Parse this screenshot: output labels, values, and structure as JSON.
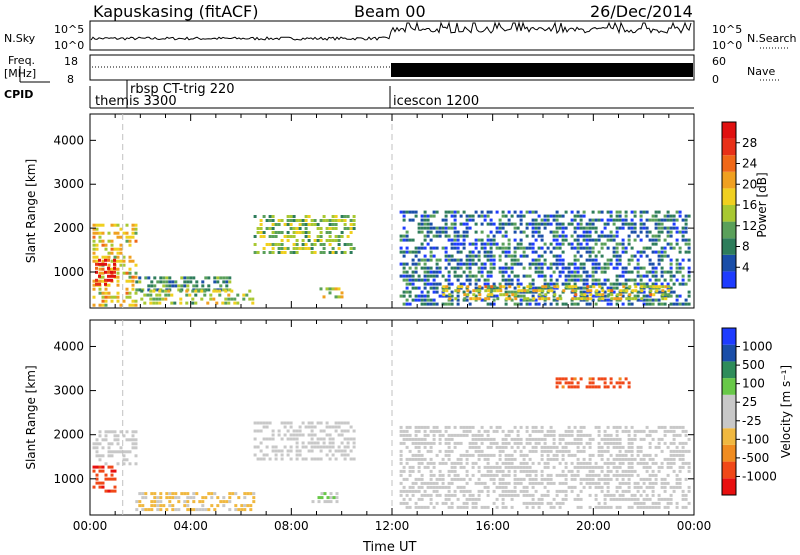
{
  "header": {
    "title": "Kapuskasing (fitACF)",
    "beam": "Beam 00",
    "date": "26/Dec/2014"
  },
  "noise_panel": {
    "left_label": "N.Sky",
    "right_label": "N.Search",
    "left_ticks": [
      "10^5",
      "10^0"
    ],
    "right_ticks": [
      "10^5",
      "10^0"
    ]
  },
  "freq_panel": {
    "left_label": "Freq.",
    "left_unit": "[MHz]",
    "right_label": "Nave",
    "left_ticks": [
      "18",
      "8"
    ],
    "right_ticks": [
      "60",
      "0"
    ]
  },
  "cpid_panel": {
    "label": "CPID",
    "modes": [
      {
        "name": "themis 3300",
        "start_hour": 0
      },
      {
        "name": "rbsp CT-trig 220",
        "start_hour": 1.3
      },
      {
        "name": "icescon 1200",
        "start_hour": 12
      }
    ]
  },
  "colors": {
    "power": [
      "#1e3cff",
      "#1a4ea8",
      "#2e7d5b",
      "#5aa05a",
      "#a8c832",
      "#f0d020",
      "#f0a020",
      "#f06818",
      "#e83018",
      "#e01010"
    ],
    "velocity": [
      "#e81010",
      "#f04818",
      "#f08c20",
      "#f0b840",
      "#c8c8c8",
      "#c8c8c8",
      "#68c848",
      "#2e8c5a",
      "#1a4ea8",
      "#1e3cff"
    ]
  },
  "chart_data": [
    {
      "type": "heatmap",
      "quantity": "Power",
      "ylabel": "Slant Range [km]",
      "xlim": [
        0,
        24
      ],
      "ylim": [
        180,
        4600
      ],
      "yticks": [
        "1000",
        "2000",
        "3000",
        "4000"
      ],
      "xticks": [
        "00:00",
        "04:00",
        "08:00",
        "12:00",
        "16:00",
        "20:00",
        "00:00"
      ],
      "colorbar": {
        "label": "Power [dB]",
        "ticks": [
          "28",
          "24",
          "20",
          "16",
          "12",
          "8",
          "4"
        ],
        "range": [
          0,
          32
        ]
      },
      "regions": [
        {
          "t": [
            0.1,
            1.8
          ],
          "r": [
            200,
            2100
          ],
          "level": 0.55
        },
        {
          "t": [
            0.2,
            1.0
          ],
          "r": [
            700,
            1300
          ],
          "level": 0.92
        },
        {
          "t": [
            1.8,
            5.5
          ],
          "r": [
            600,
            900
          ],
          "level": 0.3
        },
        {
          "t": [
            2.0,
            6.5
          ],
          "r": [
            300,
            600
          ],
          "level": 0.45
        },
        {
          "t": [
            6.5,
            10.5
          ],
          "r": [
            1400,
            2300
          ],
          "level": 0.4
        },
        {
          "t": [
            9.0,
            10.0
          ],
          "r": [
            450,
            650
          ],
          "level": 0.5
        },
        {
          "t": [
            12.3,
            23.8
          ],
          "r": [
            300,
            2400
          ],
          "level": 0.2
        },
        {
          "t": [
            14.0,
            23.0
          ],
          "r": [
            400,
            700
          ],
          "level": 0.55
        }
      ]
    },
    {
      "type": "heatmap",
      "quantity": "Velocity",
      "ylabel": "Slant Range [km]",
      "xlabel": "Time UT",
      "xlim": [
        0,
        24
      ],
      "ylim": [
        180,
        4600
      ],
      "yticks": [
        "1000",
        "2000",
        "3000",
        "4000"
      ],
      "xticks": [
        "00:00",
        "04:00",
        "08:00",
        "12:00",
        "16:00",
        "20:00",
        "00:00"
      ],
      "colorbar": {
        "label": "Velocity [m s⁻¹]",
        "ticks": [
          "1000",
          "500",
          "100",
          "25",
          "-25",
          "-100",
          "-500",
          "-1000"
        ],
        "range": [
          -1200,
          1200
        ]
      },
      "regions": [
        {
          "t": [
            0.1,
            1.0
          ],
          "r": [
            700,
            1300
          ],
          "v": -900
        },
        {
          "t": [
            0.1,
            1.8
          ],
          "r": [
            1300,
            2100
          ],
          "v": 0
        },
        {
          "t": [
            1.8,
            6.5
          ],
          "r": [
            300,
            700
          ],
          "v": -300
        },
        {
          "t": [
            6.5,
            10.5
          ],
          "r": [
            1400,
            2300
          ],
          "v": 0
        },
        {
          "t": [
            8.8,
            9.8
          ],
          "r": [
            500,
            700
          ],
          "v": 150
        },
        {
          "t": [
            12.3,
            23.8
          ],
          "r": [
            300,
            2200
          ],
          "v": 0
        },
        {
          "t": [
            18.5,
            21.5
          ],
          "r": [
            3100,
            3300
          ],
          "v": -800
        }
      ]
    }
  ]
}
